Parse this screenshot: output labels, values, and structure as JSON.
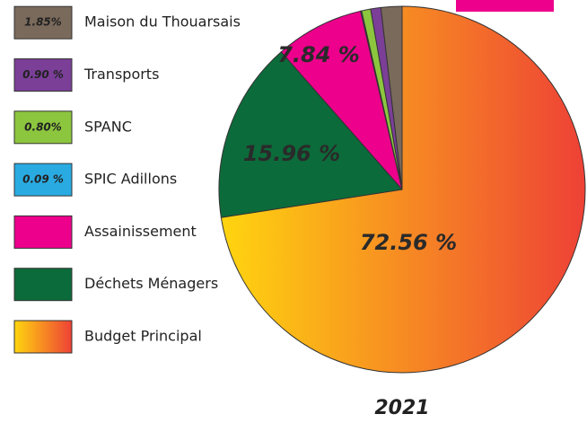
{
  "chart_data": {
    "type": "pie",
    "title": "2021",
    "categories": [
      "Budget Principal",
      "Déchets Ménagers",
      "Assainissement",
      "SPIC Adillons",
      "SPANC",
      "Transports",
      "Maison du Thouarsais"
    ],
    "values": [
      72.56,
      15.96,
      7.84,
      0.09,
      0.8,
      0.9,
      1.85
    ],
    "value_labels": [
      "72.56 %",
      "15.96 %",
      "7.84 %",
      "0.09 %",
      "0.80%",
      "0.90 %",
      "1.85%"
    ],
    "colors": [
      [
        "#ffd50f",
        "#ee4136"
      ],
      "#0c6b3a",
      "#ec008c",
      "#29abe2",
      "#8cc63f",
      "#7b3f98",
      "#7a6a5b"
    ]
  }
}
